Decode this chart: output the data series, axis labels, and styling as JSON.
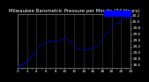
{
  "title": "Milwaukee Barometric Pressure per Minute (24 Hours)",
  "bg_color": "#000000",
  "plot_bg_color": "#000000",
  "dot_color": "#0000ff",
  "highlight_color": "#0000ff",
  "grid_color": "#555555",
  "ylabel_color": "#ffffff",
  "xlabel_color": "#ffffff",
  "title_color": "#ffffff",
  "border_color": "#888888",
  "ylim": [
    28.5,
    30.25
  ],
  "xlim": [
    0,
    1440
  ],
  "yticks": [
    28.6,
    28.8,
    29.0,
    29.2,
    29.4,
    29.6,
    29.8,
    30.0,
    30.2
  ],
  "ytick_labels": [
    "28.6",
    "28.8",
    "29.0",
    "29.2",
    "29.4",
    "29.6",
    "29.8",
    "30.0",
    "30.2"
  ],
  "vgrid_positions": [
    120,
    240,
    360,
    480,
    600,
    720,
    840,
    960,
    1080,
    1200,
    1320,
    1440
  ],
  "xtick_positions": [
    0,
    60,
    120,
    180,
    240,
    300,
    360,
    420,
    480,
    540,
    600,
    660,
    720,
    780,
    840,
    900,
    960,
    1020,
    1080,
    1140,
    1200,
    1260,
    1320,
    1380,
    1440
  ],
  "data_x": [
    0,
    20,
    40,
    60,
    80,
    100,
    120,
    140,
    160,
    180,
    200,
    220,
    240,
    270,
    300,
    330,
    360,
    390,
    420,
    450,
    480,
    510,
    540,
    570,
    600,
    630,
    660,
    690,
    720,
    750,
    780,
    810,
    840,
    870,
    900,
    930,
    960,
    990,
    1020,
    1050,
    1080,
    1110,
    1140,
    1170,
    1200,
    1230,
    1260,
    1290,
    1320,
    1350,
    1380,
    1410,
    1440
  ],
  "data_y": [
    28.55,
    28.57,
    28.6,
    28.63,
    28.65,
    28.68,
    28.72,
    28.78,
    28.85,
    28.9,
    28.96,
    29.02,
    29.08,
    29.18,
    29.25,
    29.3,
    29.33,
    29.35,
    29.37,
    29.38,
    29.36,
    29.4,
    29.43,
    29.46,
    29.48,
    29.44,
    29.38,
    29.3,
    29.22,
    29.17,
    29.13,
    29.1,
    29.09,
    29.1,
    29.12,
    29.14,
    29.18,
    29.22,
    29.28,
    29.35,
    29.45,
    29.55,
    29.65,
    29.75,
    29.85,
    29.92,
    29.96,
    30.0,
    30.05,
    30.1,
    30.14,
    30.16,
    30.13
  ],
  "highlight_x_start": 1100,
  "highlight_x_end": 1440,
  "title_fontsize": 4.0,
  "tick_fontsize": 3.0,
  "dot_size": 1.2
}
